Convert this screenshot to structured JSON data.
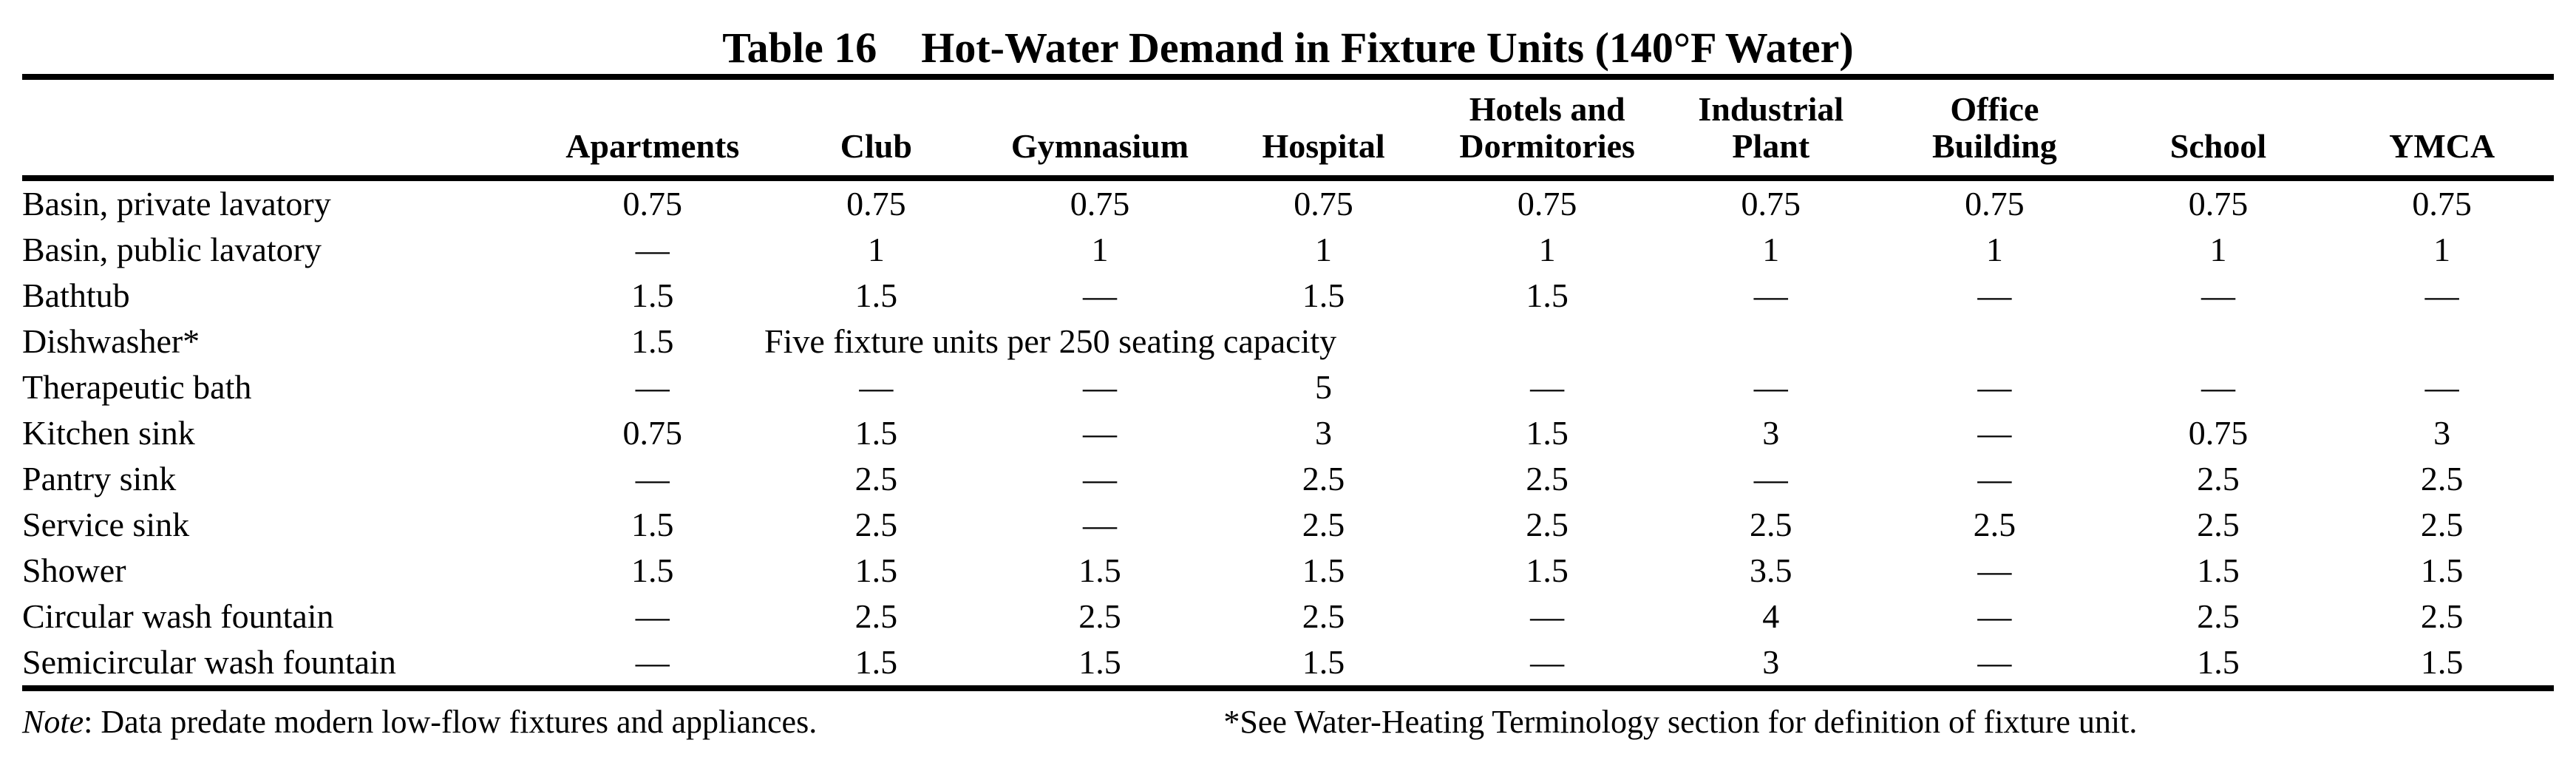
{
  "page": {
    "background": "#ffffff",
    "text_color": "#000000",
    "rule_color": "#000000"
  },
  "table": {
    "number": "Table 16",
    "title": "Hot-Water Demand in Fixture Units (140°F Water)",
    "columns": [
      "Apartments",
      "Club",
      "Gymnasium",
      "Hospital",
      "Hotels and\nDormitories",
      "Industrial\nPlant",
      "Office\nBuilding",
      "School",
      "YMCA"
    ],
    "rows": [
      {
        "label": "Basin, private lavatory",
        "cells": [
          {
            "t": "0.75"
          },
          {
            "t": "0.75"
          },
          {
            "t": "0.75"
          },
          {
            "t": "0.75"
          },
          {
            "t": "0.75"
          },
          {
            "t": "0.75"
          },
          {
            "t": "0.75"
          },
          {
            "t": "0.75"
          },
          {
            "t": "0.75"
          }
        ]
      },
      {
        "label": "Basin, public lavatory",
        "cells": [
          {
            "t": "—"
          },
          {
            "t": "1"
          },
          {
            "t": "1"
          },
          {
            "t": "1"
          },
          {
            "t": "1"
          },
          {
            "t": "1"
          },
          {
            "t": "1"
          },
          {
            "t": "1"
          },
          {
            "t": "1"
          }
        ]
      },
      {
        "label": "Bathtub",
        "cells": [
          {
            "t": "1.5"
          },
          {
            "t": "1.5"
          },
          {
            "t": "—"
          },
          {
            "t": "1.5"
          },
          {
            "t": "1.5"
          },
          {
            "t": "—"
          },
          {
            "t": "—"
          },
          {
            "t": "—"
          },
          {
            "t": "—"
          }
        ]
      },
      {
        "label": "Dishwasher*",
        "cells": [
          {
            "t": "1.5"
          },
          {
            "t": "Five fixture units per 250 seating capacity",
            "colspan": 4,
            "align": "left"
          },
          {
            "t": ""
          },
          {
            "t": ""
          },
          {
            "t": ""
          },
          {
            "t": ""
          }
        ]
      },
      {
        "label": "Therapeutic bath",
        "cells": [
          {
            "t": "—"
          },
          {
            "t": "—"
          },
          {
            "t": "—"
          },
          {
            "t": "5"
          },
          {
            "t": "—"
          },
          {
            "t": "—"
          },
          {
            "t": "—"
          },
          {
            "t": "—"
          },
          {
            "t": "—"
          }
        ]
      },
      {
        "label": "Kitchen sink",
        "cells": [
          {
            "t": "0.75"
          },
          {
            "t": "1.5"
          },
          {
            "t": "—"
          },
          {
            "t": "3"
          },
          {
            "t": "1.5"
          },
          {
            "t": "3"
          },
          {
            "t": "—"
          },
          {
            "t": "0.75"
          },
          {
            "t": "3"
          }
        ]
      },
      {
        "label": "Pantry sink",
        "cells": [
          {
            "t": "—"
          },
          {
            "t": "2.5"
          },
          {
            "t": "—"
          },
          {
            "t": "2.5"
          },
          {
            "t": "2.5"
          },
          {
            "t": "—"
          },
          {
            "t": "—"
          },
          {
            "t": "2.5"
          },
          {
            "t": "2.5"
          }
        ]
      },
      {
        "label": "Service sink",
        "cells": [
          {
            "t": "1.5"
          },
          {
            "t": "2.5"
          },
          {
            "t": "—"
          },
          {
            "t": "2.5"
          },
          {
            "t": "2.5"
          },
          {
            "t": "2.5"
          },
          {
            "t": "2.5"
          },
          {
            "t": "2.5"
          },
          {
            "t": "2.5"
          }
        ]
      },
      {
        "label": "Shower",
        "cells": [
          {
            "t": "1.5"
          },
          {
            "t": "1.5"
          },
          {
            "t": "1.5"
          },
          {
            "t": "1.5"
          },
          {
            "t": "1.5"
          },
          {
            "t": "3.5"
          },
          {
            "t": "—"
          },
          {
            "t": "1.5"
          },
          {
            "t": "1.5"
          }
        ]
      },
      {
        "label": "Circular wash fountain",
        "cells": [
          {
            "t": "—"
          },
          {
            "t": "2.5"
          },
          {
            "t": "2.5"
          },
          {
            "t": "2.5"
          },
          {
            "t": "—"
          },
          {
            "t": "4"
          },
          {
            "t": "—"
          },
          {
            "t": "2.5"
          },
          {
            "t": "2.5"
          }
        ]
      },
      {
        "label": "Semicircular wash fountain",
        "cells": [
          {
            "t": "—"
          },
          {
            "t": "1.5"
          },
          {
            "t": "1.5"
          },
          {
            "t": "1.5"
          },
          {
            "t": "—"
          },
          {
            "t": "3"
          },
          {
            "t": "—"
          },
          {
            "t": "1.5"
          },
          {
            "t": "1.5"
          }
        ]
      }
    ],
    "footnotes": {
      "note_italic": "Note",
      "note_rest": ": Data predate modern low-flow fixtures and appliances.",
      "asterisk_note": "*See Water-Heating Terminology section for definition of fixture unit."
    }
  }
}
